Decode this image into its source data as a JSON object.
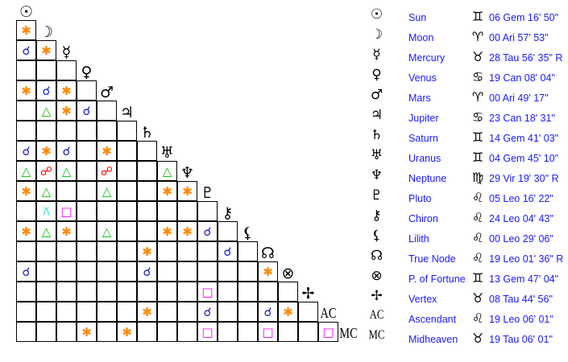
{
  "colors": {
    "sextile": "#ff8800",
    "conjunction": "#1a1ad0",
    "trine": "#00c000",
    "opposition": "#ff0000",
    "square": "#ee00ee",
    "quincunx": "#00e0e0"
  },
  "aspect_glyphs": {
    "sextile": "✱",
    "conjunction": "☌",
    "trine": "△",
    "opposition": "☍",
    "square": "□",
    "quincunx": "⚻"
  },
  "points": [
    {
      "icon": "sun-icon",
      "glyph": "☉",
      "name": "Sun",
      "sign_icon": "gemini-icon",
      "sign": "♊",
      "pos": "06 Gem 16' 50\""
    },
    {
      "icon": "moon-icon",
      "glyph": "☽",
      "name": "Moon",
      "sign_icon": "aries-icon",
      "sign": "♈",
      "pos": "00 Ari 57' 53\""
    },
    {
      "icon": "mercury-icon",
      "glyph": "☿",
      "name": "Mercury",
      "sign_icon": "taurus-icon",
      "sign": "♉",
      "pos": "28 Tau 56' 35\" R"
    },
    {
      "icon": "venus-icon",
      "glyph": "♀",
      "name": "Venus",
      "sign_icon": "cancer-icon",
      "sign": "♋",
      "pos": "19 Can 08' 04\""
    },
    {
      "icon": "mars-icon",
      "glyph": "♂",
      "name": "Mars",
      "sign_icon": "aries-icon",
      "sign": "♈",
      "pos": "00 Ari 49' 17\""
    },
    {
      "icon": "jupiter-icon",
      "glyph": "♃",
      "name": "Jupiter",
      "sign_icon": "cancer-icon",
      "sign": "♋",
      "pos": "23 Can 18' 31\""
    },
    {
      "icon": "saturn-icon",
      "glyph": "♄",
      "name": "Saturn",
      "sign_icon": "gemini-icon",
      "sign": "♊",
      "pos": "14 Gem 41' 03\""
    },
    {
      "icon": "uranus-icon",
      "glyph": "♅",
      "name": "Uranus",
      "sign_icon": "gemini-icon",
      "sign": "♊",
      "pos": "04 Gem 45' 10\""
    },
    {
      "icon": "neptune-icon",
      "glyph": "♆",
      "name": "Neptune",
      "sign_icon": "virgo-icon",
      "sign": "♍",
      "pos": "29 Vir 19' 30\" R"
    },
    {
      "icon": "pluto-icon",
      "glyph": "♇",
      "name": "Pluto",
      "sign_icon": "leo-icon",
      "sign": "♌",
      "pos": "05 Leo 16' 22\""
    },
    {
      "icon": "chiron-icon",
      "glyph": "⚷",
      "name": "Chiron",
      "sign_icon": "leo-icon",
      "sign": "♌",
      "pos": "24 Leo 04' 43\""
    },
    {
      "icon": "lilith-icon",
      "glyph": "⚸",
      "name": "Lilith",
      "sign_icon": "leo-icon",
      "sign": "♌",
      "pos": "00 Leo 29' 06\""
    },
    {
      "icon": "true-node-icon",
      "glyph": "☊",
      "name": "True Node",
      "sign_icon": "leo-icon",
      "sign": "♌",
      "pos": "19 Leo 01' 36\" R"
    },
    {
      "icon": "part-of-fortune-icon",
      "glyph": "⊗",
      "name": "P. of Fortune",
      "sign_icon": "gemini-icon",
      "sign": "♊",
      "pos": "13 Gem 47' 04\""
    },
    {
      "icon": "vertex-icon",
      "glyph": "✢",
      "name": "Vertex",
      "sign_icon": "taurus-icon",
      "sign": "♉",
      "pos": "08 Tau 44' 56\""
    },
    {
      "icon": "ascendant-icon",
      "glyph": "AC",
      "name": "Ascendant",
      "sign_icon": "leo-icon",
      "sign": "♌",
      "pos": "19 Leo 06' 01\""
    },
    {
      "icon": "midheaven-icon",
      "glyph": "MC",
      "name": "Midheaven",
      "sign_icon": "taurus-icon",
      "sign": "♉",
      "pos": "19 Tau 06' 01\""
    }
  ],
  "aspect_grid": [
    {},
    {
      "0": "sextile"
    },
    {
      "0": "conjunction",
      "1": "sextile"
    },
    {},
    {
      "0": "sextile",
      "1": "conjunction",
      "2": "sextile"
    },
    {
      "1": "trine",
      "2": "sextile",
      "3": "conjunction"
    },
    {},
    {
      "0": "conjunction",
      "1": "sextile",
      "2": "conjunction",
      "4": "sextile"
    },
    {
      "0": "trine",
      "1": "opposition",
      "2": "trine",
      "4": "opposition",
      "7": "trine"
    },
    {
      "0": "sextile",
      "1": "trine",
      "4": "trine",
      "7": "sextile",
      "8": "sextile"
    },
    {
      "1": "quincunx",
      "2": "square"
    },
    {
      "0": "sextile",
      "1": "trine",
      "2": "sextile",
      "4": "trine",
      "7": "sextile",
      "8": "sextile",
      "9": "conjunction"
    },
    {
      "6": "sextile",
      "10": "conjunction"
    },
    {
      "0": "conjunction",
      "6": "conjunction",
      "12": "sextile"
    },
    {
      "9": "square"
    },
    {
      "6": "sextile",
      "9": "conjunction",
      "12": "conjunction",
      "13": "sextile"
    },
    {
      "3": "sextile",
      "5": "sextile",
      "9": "square",
      "12": "square",
      "15": "square"
    }
  ]
}
